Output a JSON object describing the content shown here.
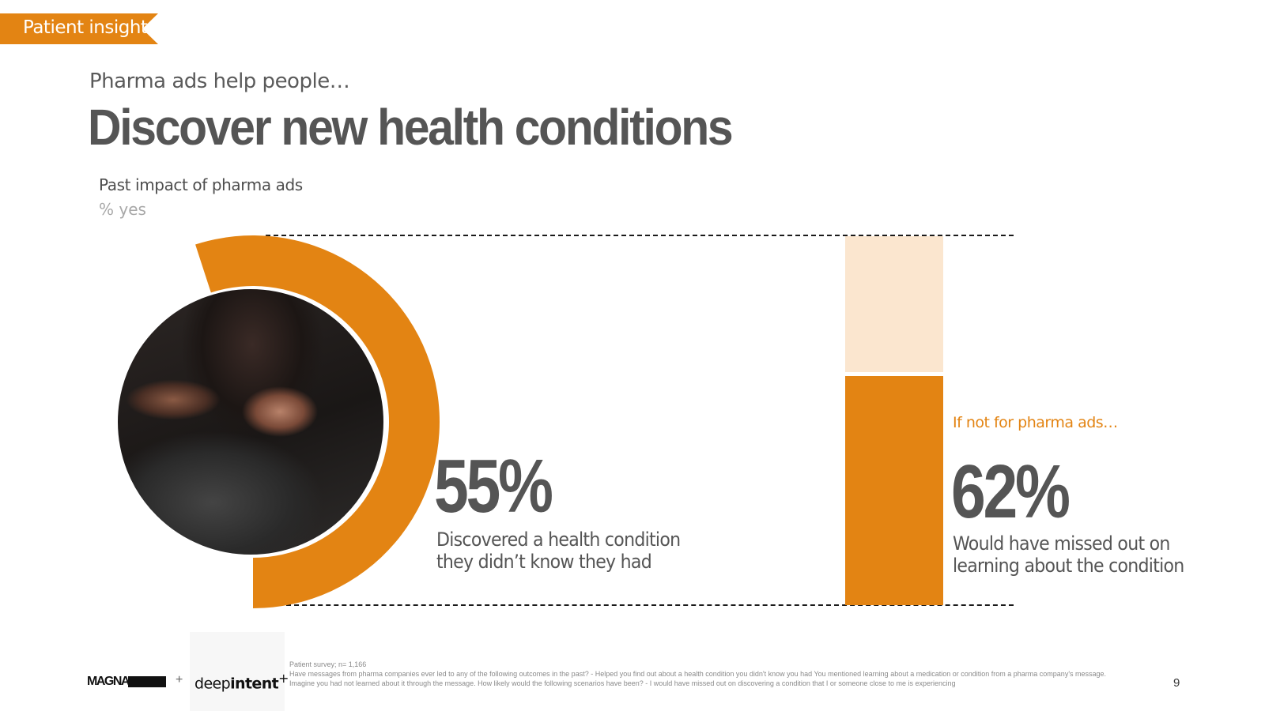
{
  "section_tag": "Patient insight",
  "eyebrow": "Pharma ads help people…",
  "headline": "Discover new health conditions",
  "chart_title": "Past impact of pharma ads",
  "chart_subtitle": "% yes",
  "stat1": {
    "value_label": "55%",
    "description_line1": "Discovered a health condition",
    "description_line2": "they didn’t know they had"
  },
  "stat2": {
    "lead_in": "If not for pharma ads…",
    "value_label": "62%",
    "description_line1": "Would have missed out on",
    "description_line2": "learning about the condition"
  },
  "chart_data": [
    {
      "type": "pie",
      "categories": [
        "Discovered a health condition they didn’t know they had"
      ],
      "values": [
        55
      ],
      "unit": "%"
    },
    {
      "type": "bar",
      "categories": [
        "Would have missed out on learning about the condition"
      ],
      "values": [
        62
      ],
      "unit": "%",
      "ylim": [
        0,
        100
      ]
    }
  ],
  "colors": {
    "accent": "#e38413",
    "accent_light": "#fbe6cf",
    "text": "#555555",
    "muted": "#a8a8a8"
  },
  "footer": {
    "logo_magna": "MAGNA",
    "logo_plus": "+",
    "logo_deep_a": "deep",
    "logo_deep_b": "intent",
    "logo_deep_sup": "+",
    "footnote_line1": "Patient survey; n= 1,166",
    "footnote_line2": "Have messages from pharma companies ever led to any of the following outcomes in the past? - Helped you find out about a health condition you didn't know you had You mentioned learning about a medication or condition from a pharma company's message. Imagine you had not learned about it through the message. How likely would the following scenarios have been? - I would have missed out on discovering a condition that I or someone close to me is experiencing",
    "page_number": "9"
  }
}
